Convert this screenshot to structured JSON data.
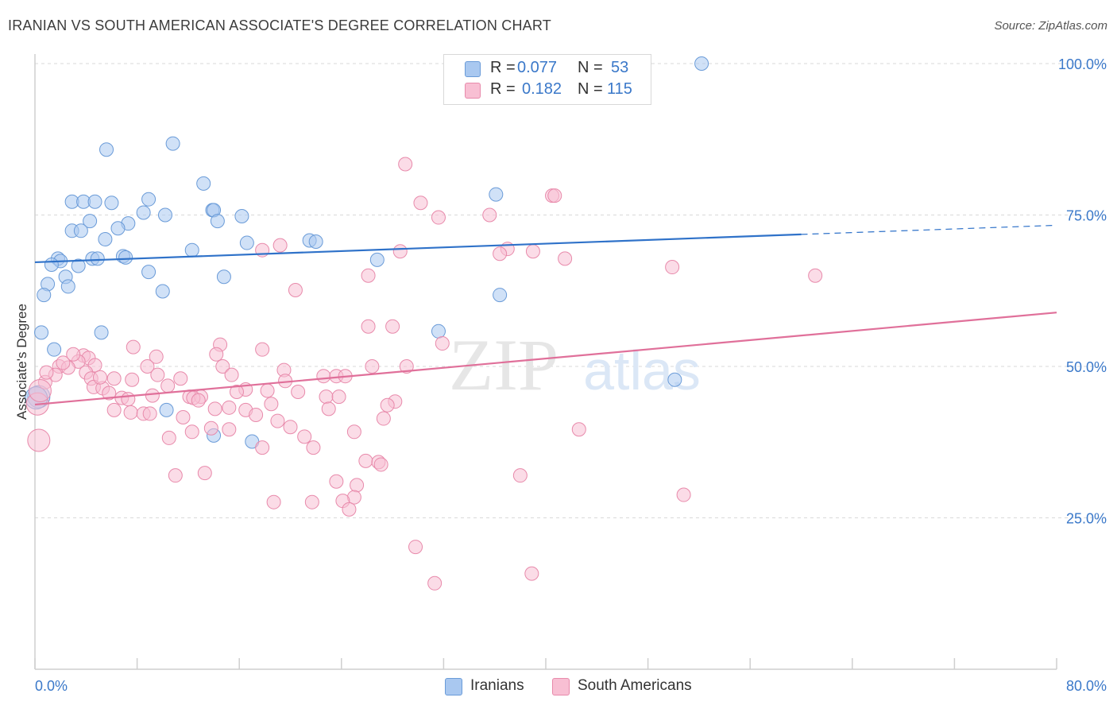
{
  "title": "IRANIAN VS SOUTH AMERICAN ASSOCIATE'S DEGREE CORRELATION CHART",
  "source": "Source: ZipAtlas.com",
  "watermark": {
    "zip": "ZIP",
    "atlas": "atlas"
  },
  "legend": {
    "rows": [
      {
        "r_label": "R =",
        "r_value": "0.077",
        "n_label": "N =",
        "n_value": "53",
        "color": "#a9c8f0",
        "border": "#6a9bd8"
      },
      {
        "r_label": "R =",
        "r_value": "0.182",
        "n_label": "N =",
        "n_value": "115",
        "color": "#f8bfd3",
        "border": "#e88aab"
      }
    ]
  },
  "bottom_legend": [
    {
      "label": "Iranians",
      "color": "#a9c8f0",
      "border": "#6a9bd8"
    },
    {
      "label": "South Americans",
      "color": "#f8bfd3",
      "border": "#e88aab"
    }
  ],
  "chart_data": {
    "type": "scatter",
    "title": "IRANIAN VS SOUTH AMERICAN ASSOCIATE'S DEGREE CORRELATION CHART",
    "xlabel": "",
    "ylabel": "Associate's Degree",
    "xlim": [
      0,
      80
    ],
    "ylim": [
      0,
      100
    ],
    "x_tick_labels": [
      "0.0%",
      "80.0%"
    ],
    "y_tick_labels": [
      "25.0%",
      "50.0%",
      "75.0%",
      "100.0%"
    ],
    "y_ticks": [
      25,
      50,
      75,
      100
    ],
    "grid": "horizontal dashed",
    "legend_position": "top-center",
    "series": [
      {
        "name": "Iranians",
        "color": "#6a9bd8",
        "fill": "#a9c8f0",
        "trend": {
          "x": [
            0,
            60
          ],
          "y": [
            67.2,
            71.8
          ],
          "dashed_extension_to": [
            80,
            73.3
          ]
        },
        "points": [
          [
            52.2,
            100.0
          ],
          [
            10.8,
            86.8
          ],
          [
            5.6,
            85.8
          ],
          [
            13.2,
            80.2
          ],
          [
            36.1,
            78.4
          ],
          [
            8.9,
            77.6
          ],
          [
            2.9,
            77.2
          ],
          [
            3.8,
            77.2
          ],
          [
            4.7,
            77.2
          ],
          [
            6.0,
            77.0
          ],
          [
            13.9,
            75.8
          ],
          [
            14.0,
            75.8
          ],
          [
            8.5,
            75.4
          ],
          [
            10.2,
            75.0
          ],
          [
            16.2,
            74.8
          ],
          [
            4.3,
            74.0
          ],
          [
            14.3,
            74.0
          ],
          [
            7.3,
            73.6
          ],
          [
            6.5,
            72.8
          ],
          [
            2.9,
            72.4
          ],
          [
            3.6,
            72.4
          ],
          [
            5.5,
            71.0
          ],
          [
            21.5,
            70.8
          ],
          [
            22.0,
            70.6
          ],
          [
            16.6,
            70.4
          ],
          [
            12.3,
            69.2
          ],
          [
            6.9,
            68.2
          ],
          [
            7.1,
            68.0
          ],
          [
            4.5,
            67.8
          ],
          [
            4.9,
            67.8
          ],
          [
            1.8,
            67.8
          ],
          [
            2.0,
            67.4
          ],
          [
            1.3,
            66.8
          ],
          [
            26.8,
            67.6
          ],
          [
            3.4,
            66.6
          ],
          [
            8.9,
            65.6
          ],
          [
            14.8,
            64.8
          ],
          [
            2.4,
            64.8
          ],
          [
            1.0,
            63.6
          ],
          [
            2.6,
            63.2
          ],
          [
            10.0,
            62.4
          ],
          [
            36.4,
            61.8
          ],
          [
            0.7,
            61.8
          ],
          [
            0.5,
            55.6
          ],
          [
            5.2,
            55.6
          ],
          [
            31.6,
            55.8
          ],
          [
            1.5,
            52.8
          ],
          [
            50.1,
            47.8
          ],
          [
            10.3,
            42.8
          ],
          [
            14.0,
            38.6
          ],
          [
            17.0,
            37.6
          ],
          [
            0.3,
            45.0
          ],
          [
            0.1,
            44.8
          ]
        ]
      },
      {
        "name": "South Americans",
        "color": "#e88aab",
        "fill": "#f8bfd3",
        "trend": {
          "x": [
            0,
            80
          ],
          "y": [
            43.7,
            58.9
          ]
        },
        "points": [
          [
            29.0,
            83.4
          ],
          [
            40.5,
            78.2
          ],
          [
            40.7,
            78.2
          ],
          [
            30.2,
            77.0
          ],
          [
            35.6,
            75.0
          ],
          [
            31.6,
            74.6
          ],
          [
            19.2,
            70.0
          ],
          [
            17.8,
            69.2
          ],
          [
            28.6,
            69.0
          ],
          [
            39.0,
            69.0
          ],
          [
            37.0,
            69.4
          ],
          [
            36.4,
            68.6
          ],
          [
            41.5,
            67.8
          ],
          [
            49.9,
            66.4
          ],
          [
            61.1,
            65.0
          ],
          [
            26.1,
            65.0
          ],
          [
            20.4,
            62.6
          ],
          [
            26.1,
            56.6
          ],
          [
            28.0,
            56.6
          ],
          [
            31.9,
            53.8
          ],
          [
            14.5,
            53.6
          ],
          [
            17.8,
            52.8
          ],
          [
            7.7,
            53.2
          ],
          [
            14.2,
            52.0
          ],
          [
            3.8,
            51.8
          ],
          [
            4.2,
            51.4
          ],
          [
            9.5,
            51.6
          ],
          [
            3.4,
            50.8
          ],
          [
            4.7,
            50.2
          ],
          [
            1.9,
            50.0
          ],
          [
            2.6,
            49.8
          ],
          [
            8.8,
            50.0
          ],
          [
            14.7,
            50.0
          ],
          [
            26.4,
            50.0
          ],
          [
            29.1,
            50.0
          ],
          [
            19.5,
            49.4
          ],
          [
            4.0,
            49.0
          ],
          [
            1.6,
            48.6
          ],
          [
            9.6,
            48.6
          ],
          [
            15.4,
            48.6
          ],
          [
            22.6,
            48.4
          ],
          [
            23.6,
            48.4
          ],
          [
            24.3,
            48.4
          ],
          [
            4.4,
            48.0
          ],
          [
            6.2,
            48.0
          ],
          [
            7.6,
            47.8
          ],
          [
            11.4,
            48.0
          ],
          [
            19.6,
            47.6
          ],
          [
            0.8,
            47.4
          ],
          [
            4.6,
            46.6
          ],
          [
            10.4,
            46.8
          ],
          [
            5.3,
            46.4
          ],
          [
            16.5,
            46.2
          ],
          [
            18.2,
            46.0
          ],
          [
            20.6,
            45.8
          ],
          [
            15.8,
            45.8
          ],
          [
            5.8,
            45.6
          ],
          [
            9.2,
            45.2
          ],
          [
            12.1,
            45.0
          ],
          [
            13.0,
            45.0
          ],
          [
            22.8,
            45.0
          ],
          [
            23.8,
            45.0
          ],
          [
            6.8,
            44.8
          ],
          [
            7.3,
            44.6
          ],
          [
            12.4,
            44.8
          ],
          [
            12.8,
            44.4
          ],
          [
            18.5,
            43.8
          ],
          [
            28.2,
            44.2
          ],
          [
            27.6,
            43.6
          ],
          [
            6.2,
            42.8
          ],
          [
            7.5,
            42.4
          ],
          [
            14.1,
            43.0
          ],
          [
            15.2,
            43.2
          ],
          [
            16.5,
            42.8
          ],
          [
            23.0,
            43.0
          ],
          [
            8.5,
            42.2
          ],
          [
            9.0,
            42.2
          ],
          [
            11.6,
            41.6
          ],
          [
            17.3,
            42.0
          ],
          [
            27.3,
            41.4
          ],
          [
            19.0,
            41.0
          ],
          [
            13.8,
            39.8
          ],
          [
            20.0,
            40.0
          ],
          [
            12.3,
            39.2
          ],
          [
            15.2,
            39.6
          ],
          [
            25.0,
            39.2
          ],
          [
            42.6,
            39.6
          ],
          [
            10.5,
            38.2
          ],
          [
            21.1,
            38.4
          ],
          [
            0.3,
            37.8
          ],
          [
            21.8,
            36.6
          ],
          [
            17.8,
            36.6
          ],
          [
            25.9,
            34.4
          ],
          [
            26.9,
            34.2
          ],
          [
            27.1,
            33.8
          ],
          [
            13.3,
            32.4
          ],
          [
            11.0,
            32.0
          ],
          [
            38.0,
            32.0
          ],
          [
            23.6,
            31.0
          ],
          [
            25.2,
            30.4
          ],
          [
            50.8,
            28.8
          ],
          [
            25.0,
            28.4
          ],
          [
            18.7,
            27.6
          ],
          [
            21.7,
            27.6
          ],
          [
            24.1,
            27.8
          ],
          [
            24.6,
            26.4
          ],
          [
            29.8,
            20.2
          ],
          [
            38.9,
            15.8
          ],
          [
            31.3,
            14.2
          ],
          [
            0.2,
            43.8
          ],
          [
            0.4,
            46.0
          ],
          [
            0.9,
            49.0
          ],
          [
            2.2,
            50.6
          ],
          [
            3.0,
            52.0
          ],
          [
            5.1,
            48.2
          ]
        ]
      }
    ]
  }
}
